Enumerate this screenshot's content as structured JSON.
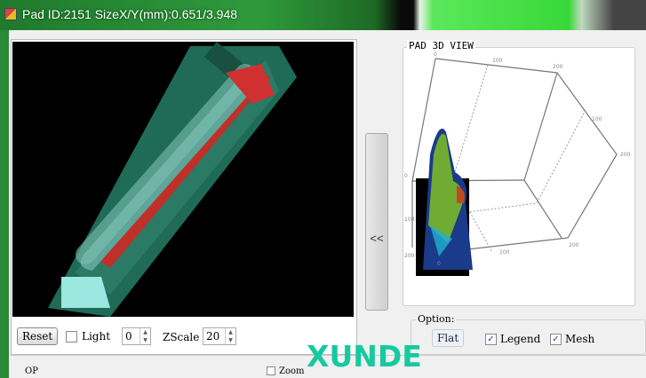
{
  "window": {
    "title": "Pad ID:2151  SizeX/Y(mm):0.651/3.948"
  },
  "left_controls": {
    "reset_label": "Reset",
    "light_label": "Light",
    "light_checked": false,
    "light_value": "0",
    "zscale_label": "ZScale",
    "zscale_value": "20"
  },
  "collapse_label": "<<",
  "view3d": {
    "title": "PAD 3D VIEW",
    "ticks_top": [
      "0",
      "100",
      "200"
    ],
    "ticks_right": [
      "100",
      "200"
    ],
    "ticks_bottom": [
      "0",
      "100",
      "200"
    ],
    "ticks_left": [
      "0",
      "100",
      "200"
    ]
  },
  "options": {
    "title": "Option:",
    "flat_label": "Flat",
    "legend_label": "Legend",
    "legend_checked": true,
    "mesh_label": "Mesh",
    "mesh_checked": true
  },
  "watermark": "XUNDE",
  "bottom": {
    "left_label": "OP",
    "zoom_label": "Zoom"
  }
}
